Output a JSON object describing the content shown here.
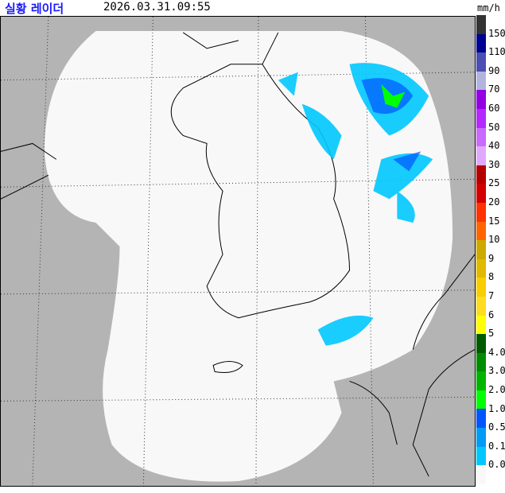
{
  "header": {
    "title": "실황 레이더",
    "timestamp": "2026.03.31.09:55",
    "unit": "mm/h"
  },
  "legend": {
    "colors": [
      "#333333",
      "#000390",
      "#4c4eb1",
      "#b3b4de",
      "#9300e4",
      "#b329ff",
      "#c969ff",
      "#e0a9ff",
      "#b40000",
      "#d20000",
      "#ff3200",
      "#ff6400",
      "#ccaa00",
      "#e0b900",
      "#f9cd00",
      "#ffdc1f",
      "#ffff00",
      "#005a00",
      "#008c00",
      "#00b400",
      "#00ff00",
      "#0055ff",
      "#009bf5",
      "#00c8ff",
      "#f8f8f8"
    ],
    "labels": [
      "150",
      "110",
      "90",
      "70",
      "60",
      "50",
      "40",
      "30",
      "25",
      "20",
      "15",
      "10",
      "9",
      "8",
      "7",
      "6",
      "5",
      "4.0",
      "3.0",
      "2.0",
      "1.0",
      "0.5",
      "0.1",
      "0.0"
    ]
  },
  "map": {
    "background": "#b4b4b4",
    "coverage": "#f8f8f8"
  }
}
